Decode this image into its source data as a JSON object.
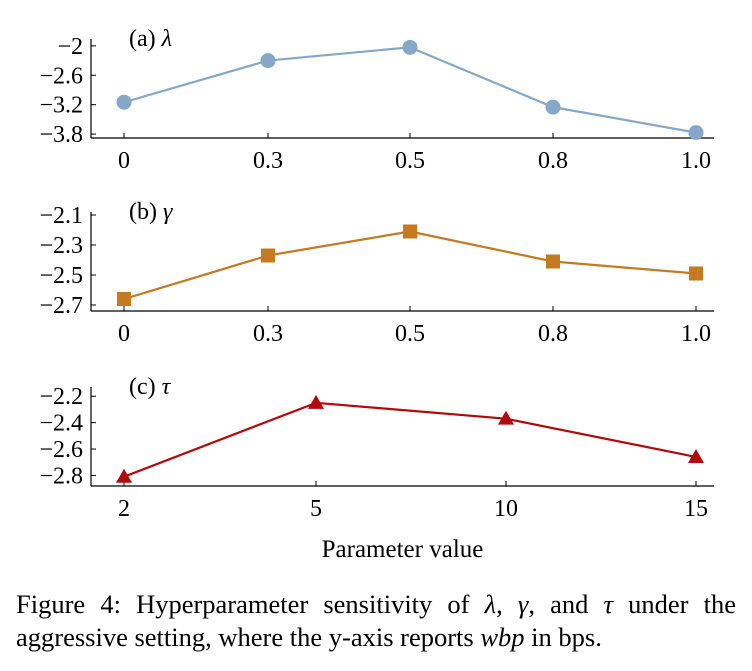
{
  "chart_data": [
    {
      "type": "line",
      "panel_label": "(a) λ",
      "x": [
        "0",
        "0.3",
        "0.5",
        "0.8",
        "1.0"
      ],
      "series": [
        {
          "values": [
            -3.15,
            -2.3,
            -2.03,
            -3.25,
            -3.77
          ],
          "color": "#86a8c8",
          "marker": "circle"
        }
      ],
      "yticks": [
        "−2",
        "−2.6",
        "−3.2",
        "−3.8"
      ],
      "ytick_values": [
        -2,
        -2.6,
        -3.2,
        -3.8
      ],
      "ylim": [
        -3.88,
        -1.86
      ]
    },
    {
      "type": "line",
      "panel_label": "(b) γ",
      "x": [
        "0",
        "0.3",
        "0.5",
        "0.8",
        "1.0"
      ],
      "series": [
        {
          "values": [
            -2.66,
            -2.37,
            -2.21,
            -2.41,
            -2.49
          ],
          "color": "#c57a21",
          "marker": "square"
        }
      ],
      "yticks": [
        "−2.1",
        "−2.3",
        "−2.5",
        "−2.7"
      ],
      "ytick_values": [
        -2.1,
        -2.3,
        -2.5,
        -2.7
      ],
      "ylim": [
        -2.74,
        -2.08
      ]
    },
    {
      "type": "line",
      "panel_label": "(c) τ",
      "x": [
        "2",
        "5",
        "10",
        "15"
      ],
      "series": [
        {
          "values": [
            -2.81,
            -2.25,
            -2.37,
            -2.66
          ],
          "color": "#b3090d",
          "marker": "triangle"
        }
      ],
      "yticks": [
        "−2.2",
        "−2.4",
        "−2.6",
        "−2.8"
      ],
      "ytick_values": [
        -2.2,
        -2.4,
        -2.6,
        -2.8
      ],
      "ylim": [
        -2.88,
        -2.13
      ],
      "xlabel": "Parameter value"
    }
  ],
  "caption": {
    "prefix": "Figure 4: Hyperparameter sensitivity of ",
    "sym1": "λ",
    "sep1": ", ",
    "sym2": "γ",
    "sep2": ", and ",
    "sym3": "τ",
    "mid": " under the aggressive setting, where the y-axis reports ",
    "var": "wbp",
    "suffix": " in bps."
  }
}
